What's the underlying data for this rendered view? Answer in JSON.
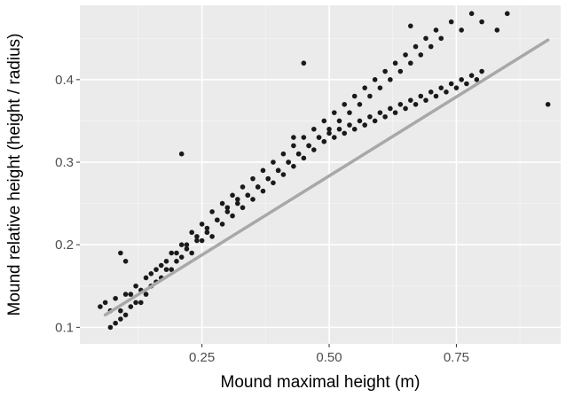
{
  "chart_data": {
    "type": "scatter",
    "title": "",
    "xlabel": "Mound maximal height (m)",
    "ylabel": "Mound relative height (height / radius)",
    "xlim": [
      0.01,
      0.955
    ],
    "ylim": [
      0.08,
      0.49
    ],
    "x_ticks": [
      0.25,
      0.5,
      0.75
    ],
    "x_tick_labels": [
      "0.25",
      "0.50",
      "0.75"
    ],
    "y_ticks": [
      0.1,
      0.2,
      0.3,
      0.4
    ],
    "y_tick_labels": [
      "0.1",
      "0.2",
      "0.3",
      "0.4"
    ],
    "grid": true,
    "legend": "none",
    "colors": {
      "panel_background": "#ebebeb",
      "grid_major": "#ffffff",
      "grid_minor": "#f5f5f5",
      "points": "#1a1a1a",
      "fit_line": "#a8a8a8",
      "axis_text": "#4d4d4d",
      "axis_title": "#000000"
    },
    "fit_line": {
      "x": [
        0.06,
        0.93
      ],
      "y": [
        0.115,
        0.448
      ]
    },
    "series": [
      {
        "x": [
          0.05,
          0.06,
          0.07,
          0.08,
          0.09,
          0.1,
          0.11,
          0.12,
          0.13,
          0.14,
          0.15,
          0.16,
          0.17,
          0.18,
          0.19,
          0.2,
          0.21,
          0.22,
          0.23,
          0.24,
          0.25,
          0.26,
          0.27,
          0.28,
          0.29,
          0.3,
          0.31,
          0.32,
          0.33,
          0.34,
          0.35,
          0.36,
          0.37,
          0.38,
          0.39,
          0.4,
          0.41,
          0.42,
          0.43,
          0.44,
          0.45,
          0.46,
          0.47,
          0.48,
          0.49,
          0.5,
          0.51,
          0.52,
          0.53,
          0.54,
          0.55,
          0.56,
          0.57,
          0.58,
          0.59,
          0.6,
          0.61,
          0.62,
          0.63,
          0.64,
          0.65,
          0.66,
          0.67,
          0.68,
          0.69,
          0.7,
          0.71,
          0.72,
          0.73,
          0.74,
          0.75,
          0.76,
          0.77,
          0.78,
          0.79,
          0.8,
          0.07,
          0.08,
          0.09,
          0.1,
          0.11,
          0.12,
          0.13,
          0.14,
          0.15,
          0.16,
          0.17,
          0.18,
          0.19,
          0.2,
          0.21,
          0.22,
          0.23,
          0.24,
          0.25,
          0.26,
          0.27,
          0.28,
          0.29,
          0.3,
          0.31,
          0.32,
          0.33,
          0.34,
          0.35,
          0.36,
          0.37,
          0.38,
          0.39,
          0.4,
          0.41,
          0.42,
          0.43,
          0.44,
          0.45,
          0.46,
          0.47,
          0.48,
          0.49,
          0.5,
          0.51,
          0.52,
          0.53,
          0.54,
          0.55,
          0.56,
          0.57,
          0.58,
          0.59,
          0.6,
          0.61,
          0.62,
          0.63,
          0.64,
          0.65,
          0.66,
          0.67,
          0.68,
          0.69,
          0.7,
          0.71,
          0.72,
          0.74,
          0.76,
          0.78,
          0.8,
          0.83,
          0.85,
          0.93,
          0.66,
          0.45,
          0.43,
          0.21,
          0.09,
          0.1
        ],
        "y": [
          0.125,
          0.13,
          0.12,
          0.135,
          0.11,
          0.14,
          0.125,
          0.15,
          0.13,
          0.16,
          0.15,
          0.17,
          0.16,
          0.18,
          0.17,
          0.19,
          0.185,
          0.2,
          0.19,
          0.21,
          0.205,
          0.22,
          0.21,
          0.23,
          0.225,
          0.24,
          0.235,
          0.25,
          0.245,
          0.26,
          0.255,
          0.27,
          0.265,
          0.28,
          0.275,
          0.29,
          0.285,
          0.3,
          0.295,
          0.31,
          0.305,
          0.32,
          0.315,
          0.33,
          0.325,
          0.335,
          0.33,
          0.34,
          0.335,
          0.345,
          0.34,
          0.35,
          0.345,
          0.355,
          0.35,
          0.36,
          0.355,
          0.365,
          0.36,
          0.37,
          0.365,
          0.375,
          0.37,
          0.38,
          0.375,
          0.385,
          0.38,
          0.39,
          0.385,
          0.395,
          0.39,
          0.4,
          0.395,
          0.405,
          0.4,
          0.41,
          0.1,
          0.105,
          0.12,
          0.115,
          0.14,
          0.13,
          0.145,
          0.14,
          0.165,
          0.155,
          0.175,
          0.17,
          0.19,
          0.18,
          0.2,
          0.195,
          0.215,
          0.205,
          0.225,
          0.215,
          0.24,
          0.23,
          0.25,
          0.245,
          0.26,
          0.255,
          0.27,
          0.26,
          0.28,
          0.27,
          0.29,
          0.28,
          0.3,
          0.29,
          0.31,
          0.3,
          0.32,
          0.31,
          0.33,
          0.32,
          0.34,
          0.33,
          0.35,
          0.34,
          0.36,
          0.35,
          0.37,
          0.36,
          0.38,
          0.37,
          0.39,
          0.38,
          0.4,
          0.39,
          0.41,
          0.4,
          0.42,
          0.41,
          0.43,
          0.42,
          0.44,
          0.43,
          0.45,
          0.44,
          0.46,
          0.45,
          0.47,
          0.46,
          0.48,
          0.47,
          0.46,
          0.48,
          0.37,
          0.465,
          0.42,
          0.33,
          0.31,
          0.19,
          0.18
        ]
      }
    ]
  }
}
